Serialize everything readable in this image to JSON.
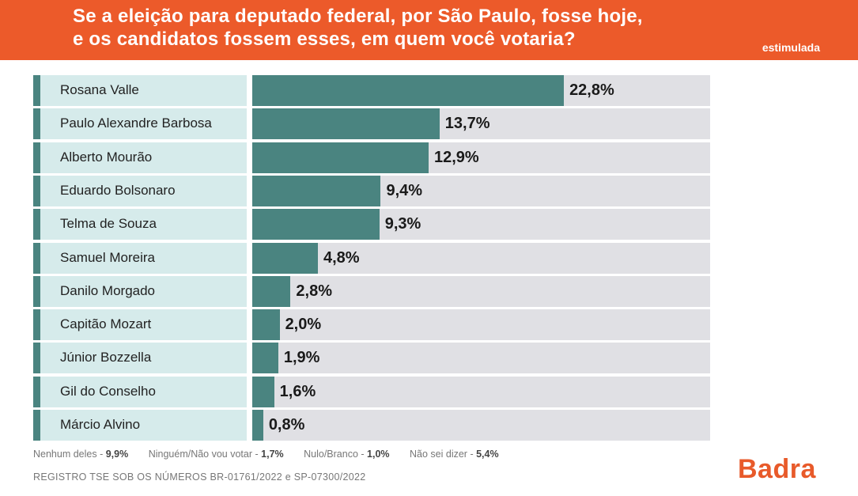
{
  "header": {
    "title_line1": "Se a eleição para deputado federal, por São Paulo, fosse hoje,",
    "title_line2": "e os candidatos fossem esses, em quem você votaria?",
    "tag": "estimulada"
  },
  "colors": {
    "header_bg": "#ec5a2a",
    "bar": "#4a8480",
    "label_bg": "#d6ebeb",
    "track": "#e0e0e4",
    "logo": "#e85a2a"
  },
  "chart_data": {
    "type": "bar",
    "orientation": "horizontal",
    "title": "Se a eleição para deputado federal, por São Paulo, fosse hoje, e os candidatos fossem esses, em quem você votaria?",
    "subtitle": "estimulada",
    "unit": "%",
    "xlim": [
      0,
      33.5
    ],
    "categories": [
      "Rosana Valle",
      "Paulo Alexandre Barbosa",
      "Alberto Mourão",
      "Eduardo Bolsonaro",
      "Telma de Souza",
      "Samuel Moreira",
      "Danilo Morgado",
      "Capitão Mozart",
      "Júnior Bozzella",
      "Gil do Conselho",
      "Márcio Alvino"
    ],
    "values": [
      22.8,
      13.7,
      12.9,
      9.4,
      9.3,
      4.8,
      2.8,
      2.0,
      1.9,
      1.6,
      0.8
    ],
    "value_labels": [
      "22,8%",
      "13,7%",
      "12,9%",
      "9,4%",
      "9,3%",
      "4,8%",
      "2,8%",
      "2,0%",
      "1,9%",
      "1,6%",
      "0,8%"
    ]
  },
  "notes": [
    {
      "label": "Nenhum deles - ",
      "value": "9,9%"
    },
    {
      "label": "Ninguém/Não vou votar - ",
      "value": "1,7%"
    },
    {
      "label": "Nulo/Branco - ",
      "value": "1,0%"
    },
    {
      "label": "Não sei dizer - ",
      "value": "5,4%"
    }
  ],
  "registry": "REGISTRO TSE SOB OS NÚMEROS BR-01761/2022 e SP-07300/2022",
  "logo": "Badra"
}
